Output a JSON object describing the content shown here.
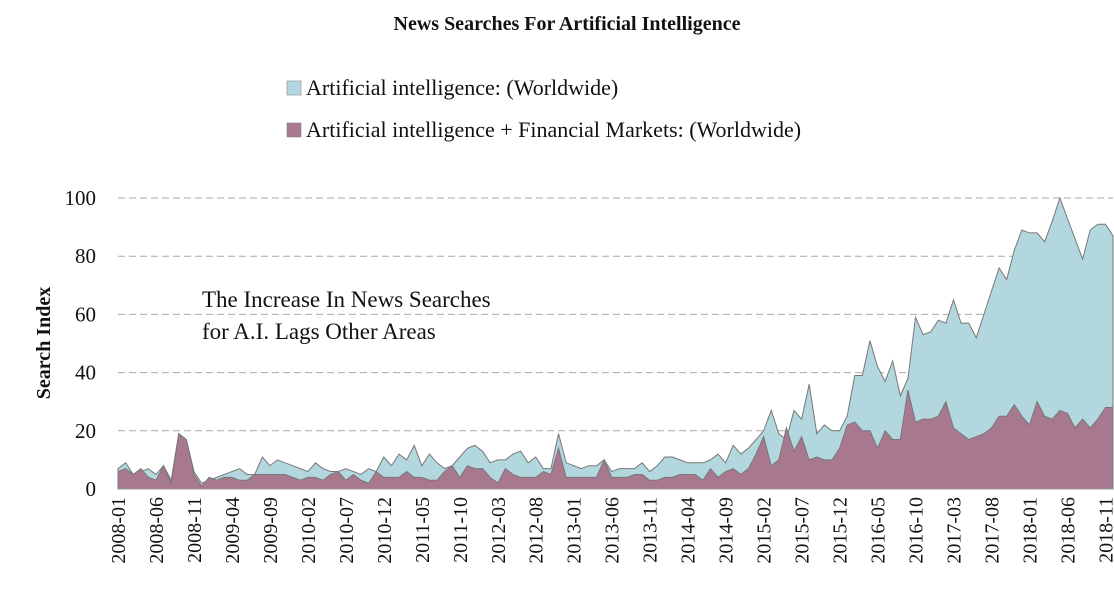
{
  "chart_data": {
    "type": "area",
    "title": "News Searches For Artificial Intelligence",
    "y_label": "Search Index",
    "annotation": [
      "The Increase In News Searches",
      "for A.I. Lags Other Areas"
    ],
    "categories": [
      "2008-01",
      null,
      null,
      null,
      null,
      "2008-06",
      null,
      null,
      null,
      null,
      "2008-11",
      null,
      null,
      null,
      null,
      "2009-04",
      null,
      null,
      null,
      null,
      "2009-09",
      null,
      null,
      null,
      null,
      "2010-02",
      null,
      null,
      null,
      null,
      "2010-07",
      null,
      null,
      null,
      null,
      "2010-12",
      null,
      null,
      null,
      null,
      "2011-05",
      null,
      null,
      null,
      null,
      "2011-10",
      null,
      null,
      null,
      null,
      "2012-03",
      null,
      null,
      null,
      null,
      "2012-08",
      null,
      null,
      null,
      null,
      "2013-01",
      null,
      null,
      null,
      null,
      "2013-06",
      null,
      null,
      null,
      null,
      "2013-11",
      null,
      null,
      null,
      null,
      "2014-04",
      null,
      null,
      null,
      null,
      "2014-09",
      null,
      null,
      null,
      null,
      "2015-02",
      null,
      null,
      null,
      null,
      "2015-07",
      null,
      null,
      null,
      null,
      "2015-12",
      null,
      null,
      null,
      null,
      "2016-05",
      null,
      null,
      null,
      null,
      "2016-10",
      null,
      null,
      null,
      null,
      "2017-03",
      null,
      null,
      null,
      null,
      "2017-08",
      null,
      null,
      null,
      null,
      "2018-01",
      null,
      null,
      null,
      null,
      "2018-06",
      null,
      null,
      null,
      null,
      "2018-11",
      null
    ],
    "series": [
      {
        "name": "Artificial intelligence: (Worldwide)",
        "color": "#b3d7de",
        "values": [
          7,
          9,
          5,
          6,
          7,
          5,
          8,
          3,
          19,
          17,
          6,
          2,
          3,
          4,
          5,
          6,
          7,
          5,
          5,
          11,
          8,
          10,
          9,
          8,
          7,
          6,
          9,
          7,
          6,
          6,
          7,
          6,
          5,
          7,
          6,
          11,
          8,
          12,
          10,
          15,
          8,
          12,
          9,
          7,
          8,
          11,
          14,
          15,
          13,
          9,
          10,
          10,
          12,
          13,
          9,
          11,
          7,
          7,
          19,
          9,
          8,
          7,
          8,
          8,
          10,
          6,
          7,
          7,
          7,
          9,
          6,
          8,
          11,
          11,
          10,
          9,
          9,
          9,
          10,
          12,
          9,
          15,
          12,
          14,
          17,
          20,
          27,
          19,
          17,
          27,
          24,
          36,
          19,
          22,
          20,
          20,
          25,
          39,
          39,
          51,
          42,
          37,
          44,
          32,
          38,
          59,
          53,
          54,
          58,
          57,
          65,
          57,
          57,
          52,
          60,
          68,
          76,
          72,
          82,
          89,
          88,
          88,
          85,
          92,
          100,
          93,
          86,
          79,
          89,
          91,
          91,
          87
        ]
      },
      {
        "name": "Artificial intelligence + Financial Markets: (Worldwide)",
        "color": "#a8788f",
        "values": [
          6,
          7,
          5,
          7,
          4,
          3,
          8,
          2,
          19,
          17,
          5,
          1,
          4,
          3,
          4,
          4,
          3,
          3,
          5,
          5,
          5,
          5,
          5,
          4,
          3,
          4,
          4,
          3,
          5,
          6,
          3,
          5,
          3,
          2,
          6,
          4,
          4,
          4,
          6,
          4,
          4,
          3,
          3,
          6,
          8,
          4,
          8,
          7,
          7,
          4,
          2,
          7,
          5,
          4,
          4,
          4,
          6,
          5,
          14,
          4,
          4,
          4,
          4,
          4,
          10,
          4,
          4,
          4,
          5,
          5,
          3,
          3,
          4,
          4,
          5,
          5,
          5,
          3,
          7,
          4,
          6,
          7,
          5,
          7,
          12,
          18,
          8,
          10,
          21,
          13,
          18,
          10,
          11,
          10,
          10,
          14,
          22,
          23,
          20,
          20,
          14,
          20,
          17,
          17,
          34,
          23,
          24,
          24,
          25,
          30,
          21,
          19,
          17,
          18,
          19,
          21,
          25,
          25,
          29,
          25,
          22,
          30,
          25,
          24,
          27,
          26,
          21,
          24,
          21,
          24,
          28,
          28
        ]
      }
    ],
    "ylim": [
      0,
      100
    ],
    "yticks": [
      0,
      20,
      40,
      60,
      80,
      100
    ],
    "grid": true
  }
}
